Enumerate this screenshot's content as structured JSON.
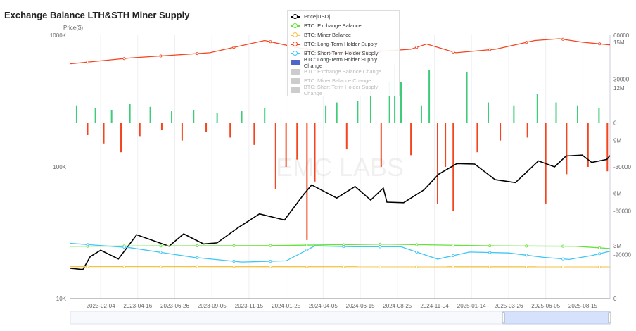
{
  "chart_data": {
    "type": "line",
    "title": "Exchange Balance LTH&STH Miner Supply",
    "ylabel": "Price($)",
    "watermark": "EMC LABS",
    "x_tick_labels": [
      "2023-02-04",
      "2023-04-16",
      "2023-06-26",
      "2023-09-05",
      "2023-11-15",
      "2024-01-25",
      "2024-04-05",
      "2024-06-15",
      "2024-08-25",
      "2024-11-04",
      "2025-01-14",
      "2025-03-26",
      "2025-06-05",
      "2025-08-15"
    ],
    "x_range": [
      "2022-12-08",
      "2025-10-06"
    ],
    "y_left": {
      "scale": "log",
      "ticks": [
        "10K",
        "100K",
        "1000K"
      ],
      "range": [
        10000,
        1000000
      ]
    },
    "y_right_change": {
      "ticks": [
        "-90000",
        "-60000",
        "-30000",
        "0",
        "30000",
        "60000"
      ],
      "range": [
        -120000,
        60000
      ]
    },
    "y_right_supply": {
      "ticks": [
        "0",
        "3M",
        "6M",
        "9M",
        "12M",
        "15M"
      ],
      "range": [
        0,
        15000000
      ]
    },
    "legend": [
      {
        "name": "Price[USD]",
        "color": "#000000",
        "type": "line",
        "active": true
      },
      {
        "name": "BTC: Exchange Balance",
        "color": "#66e23a",
        "type": "line",
        "active": true
      },
      {
        "name": "BTC: Miner Balance",
        "color": "#f5c242",
        "type": "line",
        "active": true
      },
      {
        "name": "BTC: Long-Term Holder Supply",
        "color": "#f5441e",
        "type": "line",
        "active": true
      },
      {
        "name": "BTC: Short-Term Holder Supply",
        "color": "#3ec6f5",
        "type": "line",
        "active": true
      },
      {
        "name": "BTC: Long-Term Holder Supply Change",
        "color": "#4d66c8",
        "type": "bar",
        "active": true
      },
      {
        "name": "BTC: Exchange Balance Change",
        "color": "#cccccc",
        "type": "bar",
        "active": false
      },
      {
        "name": "BTC: Miner Balance Change",
        "color": "#cccccc",
        "type": "bar",
        "active": false
      },
      {
        "name": "BTC: Short-Term Holder Supply Change",
        "color": "#cccccc",
        "type": "bar",
        "active": false
      }
    ],
    "bar_colors": {
      "positive": "#3ecb7a",
      "negative": "#f5441e"
    },
    "series": [
      {
        "name": "Price[USD]",
        "axis": "left",
        "color": "#000000",
        "points": [
          [
            "2022-12-08",
            17000
          ],
          [
            "2023-01-01",
            16600
          ],
          [
            "2023-01-15",
            20800
          ],
          [
            "2023-02-04",
            23300
          ],
          [
            "2023-03-10",
            20000
          ],
          [
            "2023-04-14",
            30500
          ],
          [
            "2023-06-15",
            25000
          ],
          [
            "2023-07-13",
            31000
          ],
          [
            "2023-08-20",
            26000
          ],
          [
            "2023-09-15",
            26500
          ],
          [
            "2023-10-25",
            34500
          ],
          [
            "2023-12-05",
            44000
          ],
          [
            "2024-01-22",
            39500
          ],
          [
            "2024-02-28",
            62000
          ],
          [
            "2024-03-14",
            73000
          ],
          [
            "2024-05-01",
            58000
          ],
          [
            "2024-06-05",
            71000
          ],
          [
            "2024-07-05",
            56000
          ],
          [
            "2024-07-29",
            69000
          ],
          [
            "2024-08-05",
            54000
          ],
          [
            "2024-09-06",
            53500
          ],
          [
            "2024-10-15",
            67000
          ],
          [
            "2024-11-12",
            88000
          ],
          [
            "2024-12-17",
            106000
          ],
          [
            "2025-01-20",
            105000
          ],
          [
            "2025-02-28",
            80000
          ],
          [
            "2025-04-08",
            76000
          ],
          [
            "2025-05-22",
            111000
          ],
          [
            "2025-06-22",
            100000
          ],
          [
            "2025-07-14",
            121000
          ],
          [
            "2025-08-14",
            123000
          ],
          [
            "2025-09-01",
            108000
          ],
          [
            "2025-09-30",
            114000
          ],
          [
            "2025-10-06",
            122000
          ]
        ]
      },
      {
        "name": "BTC: Exchange Balance",
        "axis": "supply",
        "color": "#66e23a",
        "points": [
          [
            "2022-12-08",
            2980000
          ],
          [
            "2023-06-01",
            3000000
          ],
          [
            "2024-01-01",
            3020000
          ],
          [
            "2024-08-01",
            3100000
          ],
          [
            "2025-03-01",
            3000000
          ],
          [
            "2025-08-01",
            2980000
          ],
          [
            "2025-10-06",
            2850000
          ]
        ]
      },
      {
        "name": "BTC: Miner Balance",
        "axis": "supply",
        "color": "#f5c242",
        "points": [
          [
            "2022-12-08",
            1820000
          ],
          [
            "2025-10-06",
            1810000
          ]
        ]
      },
      {
        "name": "BTC: Long-Term Holder Supply",
        "axis": "supply",
        "color": "#f5441e",
        "points": [
          [
            "2022-12-08",
            13370000
          ],
          [
            "2023-04-01",
            13700000
          ],
          [
            "2023-09-01",
            14000000
          ],
          [
            "2023-12-15",
            14700000
          ],
          [
            "2024-02-15",
            14300000
          ],
          [
            "2024-04-15",
            14000000
          ],
          [
            "2024-08-01",
            14100000
          ],
          [
            "2024-09-20",
            14200000
          ],
          [
            "2024-10-20",
            14500000
          ],
          [
            "2024-12-15",
            14000000
          ],
          [
            "2025-03-01",
            14200000
          ],
          [
            "2025-05-15",
            14700000
          ],
          [
            "2025-07-01",
            14800000
          ],
          [
            "2025-08-15",
            14600000
          ],
          [
            "2025-10-06",
            14450000
          ]
        ]
      },
      {
        "name": "BTC: Short-Term Holder Supply",
        "axis": "supply",
        "color": "#3ec6f5",
        "points": [
          [
            "2022-12-08",
            3150000
          ],
          [
            "2023-04-01",
            2900000
          ],
          [
            "2023-08-01",
            2350000
          ],
          [
            "2023-11-01",
            2080000
          ],
          [
            "2024-01-25",
            2150000
          ],
          [
            "2024-03-20",
            3000000
          ],
          [
            "2024-06-01",
            2950000
          ],
          [
            "2024-09-01",
            2950000
          ],
          [
            "2024-11-10",
            2250000
          ],
          [
            "2025-01-10",
            2650000
          ],
          [
            "2025-03-26",
            2600000
          ],
          [
            "2025-06-01",
            2350000
          ],
          [
            "2025-07-20",
            2230000
          ],
          [
            "2025-09-01",
            2450000
          ],
          [
            "2025-10-06",
            2700000
          ]
        ]
      }
    ],
    "bars": {
      "name": "BTC: Long-Term Holder Supply Change",
      "axis": "change",
      "points": [
        [
          "2022-12-20",
          12000
        ],
        [
          "2023-01-10",
          -8000
        ],
        [
          "2023-01-25",
          10000
        ],
        [
          "2023-02-10",
          -14000
        ],
        [
          "2023-02-25",
          9000
        ],
        [
          "2023-03-15",
          -20000
        ],
        [
          "2023-04-01",
          13000
        ],
        [
          "2023-04-20",
          -9000
        ],
        [
          "2023-05-10",
          11000
        ],
        [
          "2023-06-01",
          -5000
        ],
        [
          "2023-06-20",
          8000
        ],
        [
          "2023-07-10",
          -12000
        ],
        [
          "2023-08-01",
          9000
        ],
        [
          "2023-08-25",
          -6000
        ],
        [
          "2023-09-15",
          7000
        ],
        [
          "2023-10-10",
          -10000
        ],
        [
          "2023-11-01",
          8000
        ],
        [
          "2023-11-25",
          -15000
        ],
        [
          "2023-12-15",
          10000
        ],
        [
          "2024-01-05",
          -45000
        ],
        [
          "2024-01-25",
          -30000
        ],
        [
          "2024-02-15",
          -25000
        ],
        [
          "2024-03-05",
          -80000
        ],
        [
          "2024-03-20",
          -40000
        ],
        [
          "2024-04-10",
          12000
        ],
        [
          "2024-05-01",
          14000
        ],
        [
          "2024-05-20",
          -18000
        ],
        [
          "2024-06-10",
          15000
        ],
        [
          "2024-07-05",
          22000
        ],
        [
          "2024-07-25",
          -30000
        ],
        [
          "2024-08-10",
          28000
        ],
        [
          "2024-08-20",
          40000
        ],
        [
          "2024-09-01",
          28000
        ],
        [
          "2024-09-20",
          -22000
        ],
        [
          "2024-10-10",
          12000
        ],
        [
          "2024-10-25",
          36000
        ],
        [
          "2024-11-10",
          -55000
        ],
        [
          "2024-11-25",
          -30000
        ],
        [
          "2024-12-10",
          -60000
        ],
        [
          "2025-01-05",
          35000
        ],
        [
          "2025-01-25",
          -20000
        ],
        [
          "2025-02-15",
          14000
        ],
        [
          "2025-03-10",
          -12000
        ],
        [
          "2025-04-05",
          12000
        ],
        [
          "2025-05-01",
          -10000
        ],
        [
          "2025-05-20",
          20000
        ],
        [
          "2025-06-05",
          -55000
        ],
        [
          "2025-06-25",
          14000
        ],
        [
          "2025-07-15",
          -35000
        ],
        [
          "2025-08-05",
          12000
        ],
        [
          "2025-08-25",
          -30000
        ],
        [
          "2025-09-15",
          10000
        ],
        [
          "2025-10-01",
          -33000
        ]
      ]
    }
  }
}
